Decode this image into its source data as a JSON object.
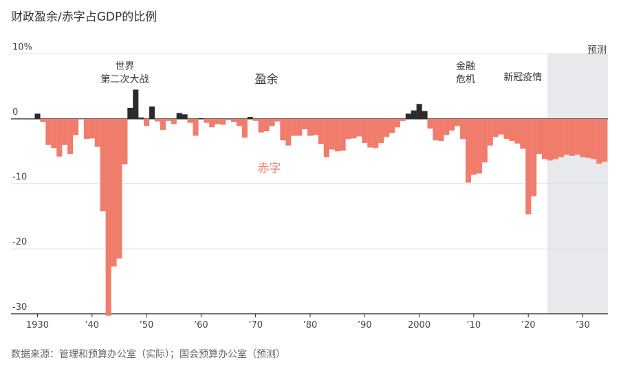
{
  "header": {
    "title": "财政盈余/赤字占GDP的比例"
  },
  "footer": {
    "source": "数据来源：管理和预算办公室（实际）；国会预算办公室（预测）"
  },
  "chart_data": {
    "type": "bar",
    "title": "财政盈余/赤字占GDP的比例",
    "ylim": [
      -30,
      10
    ],
    "yticks": [
      {
        "v": 10,
        "label": "10%"
      },
      {
        "v": 0,
        "label": "0"
      },
      {
        "v": -10,
        "label": "-10"
      },
      {
        "v": -20,
        "label": "-20"
      },
      {
        "v": -30,
        "label": "-30"
      }
    ],
    "xlim": [
      1929,
      2035
    ],
    "xticks": [
      {
        "v": 1930,
        "label": "1930"
      },
      {
        "v": 1940,
        "label": "’40"
      },
      {
        "v": 1950,
        "label": "’50"
      },
      {
        "v": 1960,
        "label": "’60"
      },
      {
        "v": 1970,
        "label": "’70"
      },
      {
        "v": 1980,
        "label": "’80"
      },
      {
        "v": 1990,
        "label": "’90"
      },
      {
        "v": 2000,
        "label": "2000"
      },
      {
        "v": 2010,
        "label": "’10"
      },
      {
        "v": 2020,
        "label": "’20"
      },
      {
        "v": 2030,
        "label": "’30"
      }
    ],
    "projection_start": 2024,
    "projection_label": "预测",
    "surplus_label": "盈余",
    "deficit_label": "赤字",
    "colors": {
      "surplus": "#2b2b2b",
      "deficit": "#f07c6c",
      "projection_bg": "#e8e9ec"
    },
    "annotations": [
      {
        "x": 1946,
        "y": 7.6,
        "lines": [
          "世界",
          "第二次大战"
        ]
      },
      {
        "x": 2008.5,
        "y": 7.6,
        "lines": [
          "金融",
          "危机"
        ]
      },
      {
        "x": 2019,
        "y": 5.9,
        "lines": [
          "新冠疫情"
        ]
      }
    ],
    "years": [
      1930,
      1931,
      1932,
      1933,
      1934,
      1935,
      1936,
      1937,
      1938,
      1939,
      1940,
      1941,
      1942,
      1943,
      1944,
      1945,
      1946,
      1947,
      1948,
      1949,
      1950,
      1951,
      1952,
      1953,
      1954,
      1955,
      1956,
      1957,
      1958,
      1959,
      1960,
      1961,
      1962,
      1963,
      1964,
      1965,
      1966,
      1967,
      1968,
      1969,
      1970,
      1971,
      1972,
      1973,
      1974,
      1975,
      1976,
      1977,
      1978,
      1979,
      1980,
      1981,
      1982,
      1983,
      1984,
      1985,
      1986,
      1987,
      1988,
      1989,
      1990,
      1991,
      1992,
      1993,
      1994,
      1995,
      1996,
      1997,
      1998,
      1999,
      2000,
      2001,
      2002,
      2003,
      2004,
      2005,
      2006,
      2007,
      2008,
      2009,
      2010,
      2011,
      2012,
      2013,
      2014,
      2015,
      2016,
      2017,
      2018,
      2019,
      2020,
      2021,
      2022,
      2023,
      2024,
      2025,
      2026,
      2027,
      2028,
      2029,
      2030,
      2031,
      2032,
      2033,
      2034
    ],
    "values": [
      0.8,
      -0.5,
      -4.0,
      -4.5,
      -5.8,
      -4.0,
      -5.4,
      -2.5,
      -0.1,
      -3.1,
      -3.0,
      -4.3,
      -14.2,
      -30.3,
      -22.7,
      -21.5,
      -7.0,
      1.7,
      4.5,
      0.2,
      -1.1,
      1.9,
      -0.4,
      -1.7,
      -0.3,
      -0.8,
      0.9,
      0.7,
      -0.6,
      -2.6,
      0.1,
      -0.6,
      -1.3,
      -0.8,
      -0.9,
      -0.2,
      -0.5,
      -1.1,
      -2.9,
      0.3,
      -0.3,
      -2.1,
      -1.9,
      -1.1,
      -0.4,
      -3.3,
      -4.1,
      -2.6,
      -2.6,
      -1.6,
      -2.6,
      -2.5,
      -3.9,
      -5.9,
      -4.7,
      -5.0,
      -4.9,
      -3.1,
      -3.0,
      -2.7,
      -3.7,
      -4.4,
      -4.5,
      -3.7,
      -2.8,
      -2.2,
      -1.3,
      -0.3,
      0.8,
      1.3,
      2.3,
      1.2,
      -1.5,
      -3.3,
      -3.4,
      -2.5,
      -1.8,
      -1.1,
      -3.1,
      -9.8,
      -8.6,
      -8.4,
      -6.7,
      -4.1,
      -2.8,
      -2.4,
      -3.1,
      -3.4,
      -3.8,
      -4.6,
      -14.7,
      -11.9,
      -5.4,
      -6.2,
      -6.4,
      -6.2,
      -5.9,
      -5.5,
      -5.7,
      -5.5,
      -5.9,
      -6.0,
      -6.2,
      -6.9,
      -6.6
    ]
  }
}
